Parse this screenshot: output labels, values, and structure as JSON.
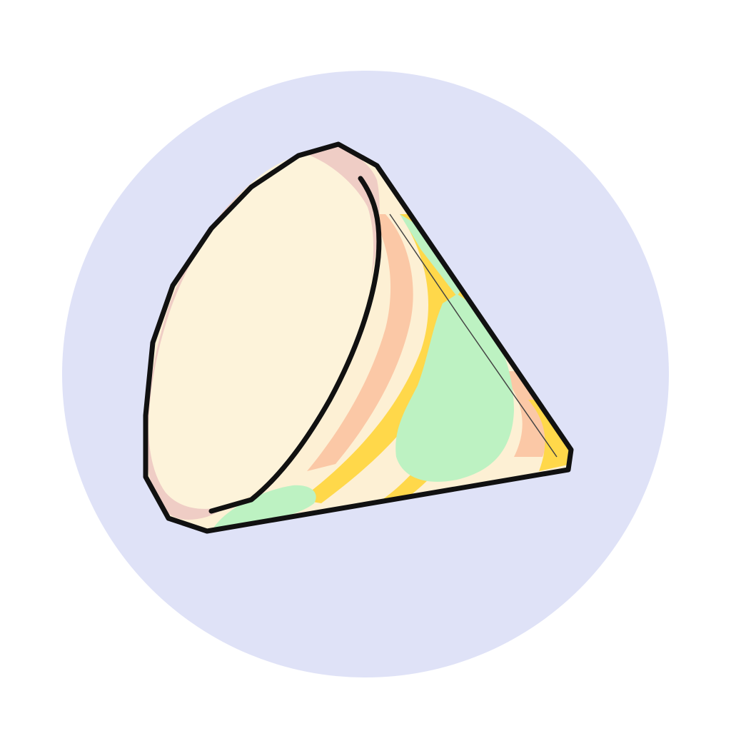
{
  "illustration": {
    "subject": "cone-icon",
    "colors": {
      "page_background": "#ffffff",
      "circle_background": "#dfe2f7",
      "base_face": "#fdf3da",
      "base_rim": "#efcdc5",
      "cream": "#fdf0d4",
      "yellow_stripe": "#ffd84a",
      "peach_stripe": "#fbc8a6",
      "green_patch": "#bdf2c2",
      "outline": "#111111"
    }
  }
}
